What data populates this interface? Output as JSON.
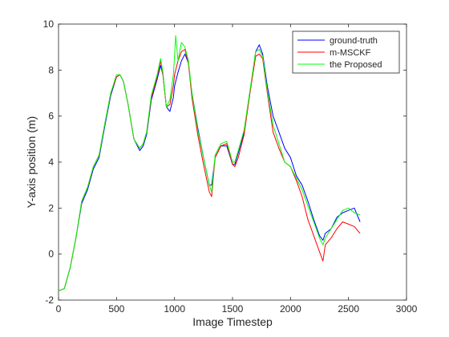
{
  "chart_data": {
    "type": "line",
    "title": "",
    "xlabel": "Image Timestep",
    "ylabel": "Y-axis position (m)",
    "xlim": [
      0,
      3000
    ],
    "ylim": [
      -2,
      10
    ],
    "xticks": [
      0,
      500,
      1000,
      1500,
      2000,
      2500,
      3000
    ],
    "yticks": [
      -2,
      0,
      2,
      4,
      6,
      8,
      10
    ],
    "grid": false,
    "legend_position": "top-right",
    "series": [
      {
        "name": "ground-truth",
        "color": "#0000ff",
        "x": [
          0,
          50,
          100,
          150,
          200,
          250,
          300,
          350,
          400,
          450,
          500,
          530,
          560,
          600,
          650,
          700,
          730,
          760,
          800,
          850,
          880,
          900,
          930,
          960,
          990,
          1000,
          1030,
          1060,
          1090,
          1120,
          1150,
          1200,
          1250,
          1300,
          1320,
          1350,
          1400,
          1450,
          1500,
          1520,
          1550,
          1600,
          1650,
          1700,
          1730,
          1760,
          1800,
          1850,
          1900,
          1950,
          2000,
          2050,
          2100,
          2150,
          2200,
          2250,
          2280,
          2300,
          2350,
          2400,
          2450,
          2500,
          2550,
          2600
        ],
        "y": [
          -1.6,
          -1.5,
          -0.6,
          0.7,
          2.2,
          2.8,
          3.7,
          4.2,
          5.6,
          6.9,
          7.7,
          7.8,
          7.5,
          6.5,
          5.0,
          4.5,
          4.7,
          5.2,
          6.7,
          7.6,
          8.2,
          7.8,
          6.4,
          6.2,
          6.8,
          7.3,
          7.9,
          8.4,
          8.7,
          8.3,
          7.0,
          5.5,
          4.2,
          3.0,
          3.0,
          4.2,
          4.7,
          4.7,
          3.9,
          3.9,
          4.4,
          5.3,
          7.0,
          8.8,
          9.1,
          8.7,
          7.3,
          6.0,
          5.3,
          4.6,
          4.2,
          3.4,
          3.0,
          2.3,
          1.5,
          0.8,
          0.6,
          0.9,
          1.1,
          1.6,
          1.8,
          1.9,
          2.0,
          1.4
        ]
      },
      {
        "name": "m-MSCKF",
        "color": "#ff0000",
        "x": [
          0,
          50,
          100,
          150,
          200,
          250,
          300,
          350,
          400,
          450,
          500,
          530,
          560,
          600,
          650,
          700,
          730,
          760,
          800,
          850,
          880,
          900,
          930,
          960,
          990,
          1000,
          1030,
          1060,
          1090,
          1120,
          1150,
          1200,
          1250,
          1300,
          1320,
          1350,
          1400,
          1450,
          1500,
          1520,
          1550,
          1600,
          1650,
          1700,
          1730,
          1760,
          1800,
          1850,
          1900,
          1950,
          2000,
          2050,
          2100,
          2150,
          2200,
          2250,
          2280,
          2300,
          2350,
          2400,
          2450,
          2500,
          2550,
          2600
        ],
        "y": [
          -1.6,
          -1.5,
          -0.6,
          0.7,
          2.3,
          2.9,
          3.8,
          4.3,
          5.7,
          7.0,
          7.7,
          7.8,
          7.5,
          6.5,
          5.0,
          4.6,
          4.8,
          5.3,
          6.8,
          7.7,
          8.4,
          7.8,
          6.4,
          6.5,
          7.3,
          7.8,
          8.4,
          8.8,
          8.9,
          8.3,
          6.8,
          5.2,
          3.9,
          2.7,
          2.5,
          4.2,
          4.7,
          4.8,
          3.9,
          3.8,
          4.2,
          5.2,
          7.0,
          8.6,
          8.7,
          8.5,
          7.0,
          5.3,
          4.6,
          4.0,
          3.8,
          3.2,
          2.5,
          1.5,
          0.8,
          0.1,
          -0.3,
          0.4,
          0.7,
          1.1,
          1.4,
          1.3,
          1.2,
          0.9
        ]
      },
      {
        "name": "the Proposed",
        "color": "#00ff00",
        "x": [
          0,
          50,
          100,
          150,
          200,
          250,
          300,
          350,
          400,
          450,
          500,
          530,
          560,
          600,
          650,
          700,
          730,
          760,
          800,
          850,
          880,
          900,
          930,
          960,
          990,
          1000,
          1010,
          1030,
          1060,
          1090,
          1120,
          1150,
          1200,
          1250,
          1300,
          1320,
          1350,
          1400,
          1450,
          1500,
          1520,
          1550,
          1600,
          1650,
          1700,
          1730,
          1760,
          1800,
          1850,
          1900,
          1950,
          2000,
          2050,
          2100,
          2150,
          2200,
          2250,
          2280,
          2300,
          2350,
          2400,
          2450,
          2500,
          2550,
          2600
        ],
        "y": [
          -1.6,
          -1.5,
          -0.6,
          0.7,
          2.3,
          2.9,
          3.8,
          4.3,
          5.7,
          7.0,
          7.8,
          7.8,
          7.5,
          6.5,
          5.0,
          4.6,
          4.8,
          5.3,
          6.9,
          7.8,
          8.5,
          7.9,
          6.4,
          6.7,
          7.8,
          8.6,
          9.5,
          8.4,
          9.2,
          9.0,
          8.4,
          7.0,
          5.4,
          4.2,
          3.0,
          2.7,
          4.3,
          4.8,
          4.9,
          4.0,
          4.0,
          4.5,
          5.4,
          7.1,
          8.8,
          8.9,
          8.6,
          7.1,
          5.6,
          4.8,
          4.0,
          3.8,
          3.3,
          2.8,
          2.1,
          1.4,
          0.7,
          0.4,
          0.7,
          1.1,
          1.5,
          1.9,
          2.0,
          1.8,
          1.7
        ]
      }
    ]
  }
}
